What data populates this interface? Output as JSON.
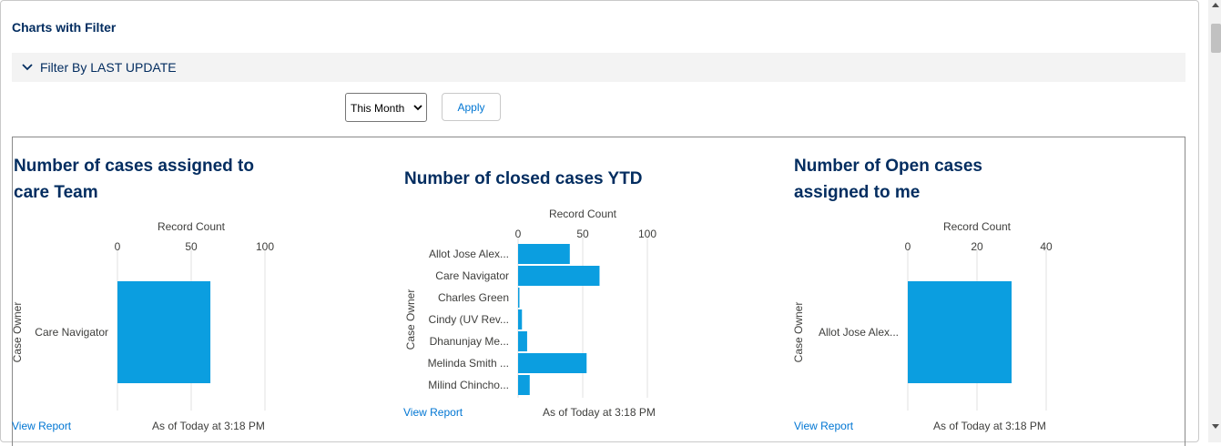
{
  "page": {
    "title": "Charts with Filter",
    "filter_label": "Filter By LAST UPDATE",
    "period_select": {
      "value": "This Month"
    },
    "apply_label": "Apply"
  },
  "colors": {
    "bar": "#0b9ee0",
    "title": "#032d60",
    "link": "#0176d3"
  },
  "widgets": [
    {
      "title_line1": "Number of cases assigned to",
      "title_line2": "care Team",
      "view_report": "View Report",
      "as_of": "As of Today at 3:18 PM"
    },
    {
      "title_line1": "Number of closed cases YTD",
      "view_report": "View Report",
      "as_of": "As of Today at 3:18 PM"
    },
    {
      "title_line1": "Number of Open cases",
      "title_line2": "assigned to me",
      "view_report": "View Report",
      "as_of": "As of Today at 3:18 PM"
    }
  ],
  "chart_data": [
    {
      "type": "bar",
      "orientation": "horizontal",
      "xlabel": "Record Count",
      "ylabel": "Case Owner",
      "xlim": [
        0,
        100
      ],
      "ticks": [
        0,
        50,
        100
      ],
      "grid": true,
      "categories": [
        "Care Navigator"
      ],
      "values": [
        63
      ]
    },
    {
      "type": "bar",
      "orientation": "horizontal",
      "xlabel": "Record Count",
      "ylabel": "Case Owner",
      "xlim": [
        0,
        100
      ],
      "ticks": [
        0,
        50,
        100
      ],
      "grid": true,
      "categories": [
        "Allot Jose Alex...",
        "Care Navigator",
        "Charles Green",
        "Cindy (UV Rev...",
        "Dhanunjay Me...",
        "Melinda Smith ...",
        "Milind Chincho..."
      ],
      "values": [
        40,
        63,
        1,
        3,
        7,
        53,
        9
      ]
    },
    {
      "type": "bar",
      "orientation": "horizontal",
      "xlabel": "Record Count",
      "ylabel": "Case Owner",
      "xlim": [
        0,
        40
      ],
      "ticks": [
        0,
        20,
        40
      ],
      "grid": true,
      "categories": [
        "Allot Jose Alex..."
      ],
      "values": [
        30
      ]
    }
  ]
}
